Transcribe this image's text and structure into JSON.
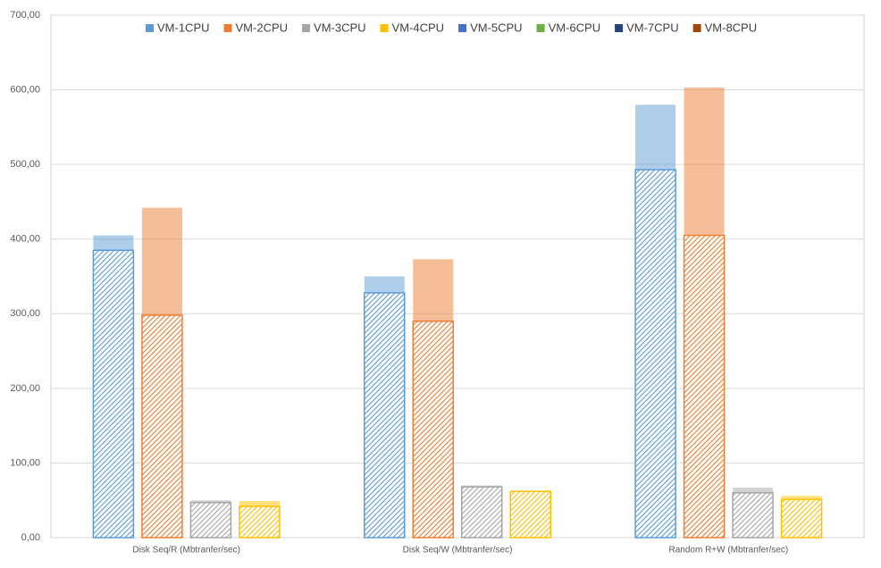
{
  "chart_data": {
    "type": "bar",
    "categories": [
      "Disk Seq/R (Mbtranfer/sec)",
      "Disk Seq/W (Mbtranfer/sec)",
      "Random R+W (Mbtranfer/sec)"
    ],
    "series": [
      {
        "name": "VM-1CPU",
        "color": "#5b9bd5",
        "values": [
          405,
          350,
          580
        ]
      },
      {
        "name": "VM-2CPU",
        "color": "#ed7d31",
        "values": [
          442,
          373,
          603
        ]
      },
      {
        "name": "VM-3CPU",
        "color": "#a5a5a5",
        "values": [
          50,
          70,
          67
        ]
      },
      {
        "name": "VM-4CPU",
        "color": "#ffc000",
        "values": [
          49,
          62,
          56
        ]
      },
      {
        "name": "VM-5CPU",
        "color": "#4472c4",
        "values": [
          385,
          328,
          493
        ]
      },
      {
        "name": "VM-6CPU",
        "color": "#70ad47",
        "values": [
          298,
          290,
          405
        ]
      },
      {
        "name": "VM-7CPU",
        "color": "#264478",
        "values": [
          47,
          68,
          60
        ]
      },
      {
        "name": "VM-8CPU",
        "color": "#9e480e",
        "values": [
          42,
          62,
          51
        ]
      }
    ],
    "ylim": [
      0,
      700
    ],
    "yticks": [
      {
        "value": 0,
        "label": "0,00"
      },
      {
        "value": 100,
        "label": "100,00"
      },
      {
        "value": 200,
        "label": "200,00"
      },
      {
        "value": 300,
        "label": "300,00"
      },
      {
        "value": 400,
        "label": "400,00"
      },
      {
        "value": 500,
        "label": "500,00"
      },
      {
        "value": 600,
        "label": "600,00"
      },
      {
        "value": 700,
        "label": "700,00"
      }
    ],
    "grid": true
  }
}
